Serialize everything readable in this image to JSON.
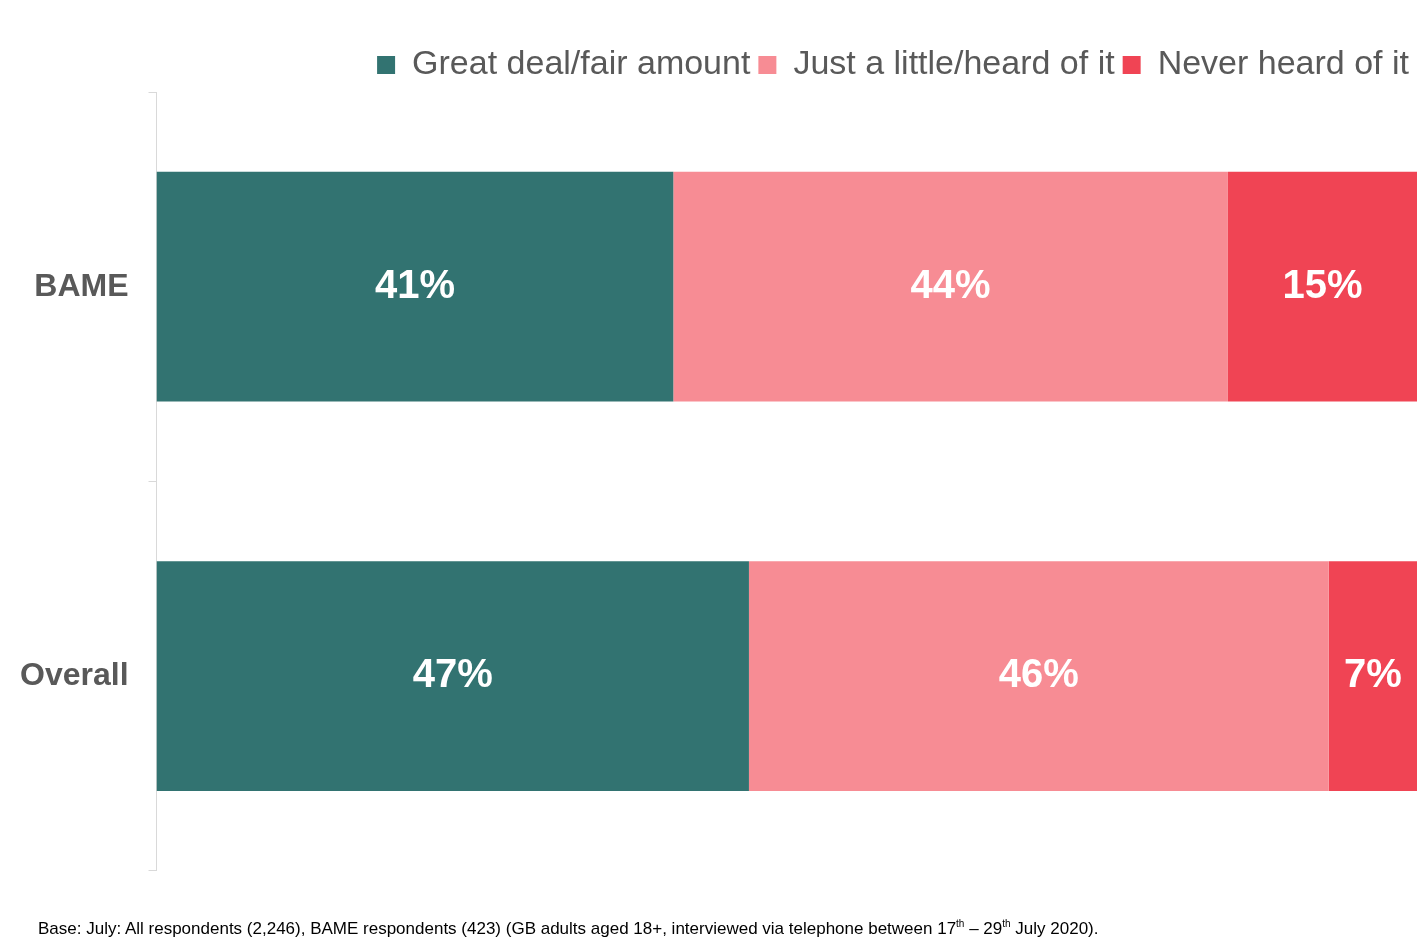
{
  "chart_data": {
    "type": "bar",
    "orientation": "horizontal",
    "stacked": true,
    "categories": [
      "BAME",
      "Overall"
    ],
    "series": [
      {
        "name": "Great deal/fair amount",
        "color": "#327371",
        "values": [
          41,
          47
        ],
        "value_labels": [
          "41%",
          "47%"
        ]
      },
      {
        "name": "Just a little/heard of it",
        "color": "#f78c94",
        "values": [
          44,
          46
        ],
        "value_labels": [
          "44%",
          "46%"
        ]
      },
      {
        "name": "Never heard of it",
        "color": "#f04454",
        "values": [
          15,
          7
        ],
        "value_labels": [
          "15%",
          "7%"
        ]
      }
    ],
    "legend": "top right",
    "grid": false,
    "annotations": [
      "Base: July: All respondents (2,246), BAME respondents (423) (GB adults aged 18+, interviewed via telephone between 17$^{th}$ – 29$^{th}$ July 2020)."
    ]
  }
}
